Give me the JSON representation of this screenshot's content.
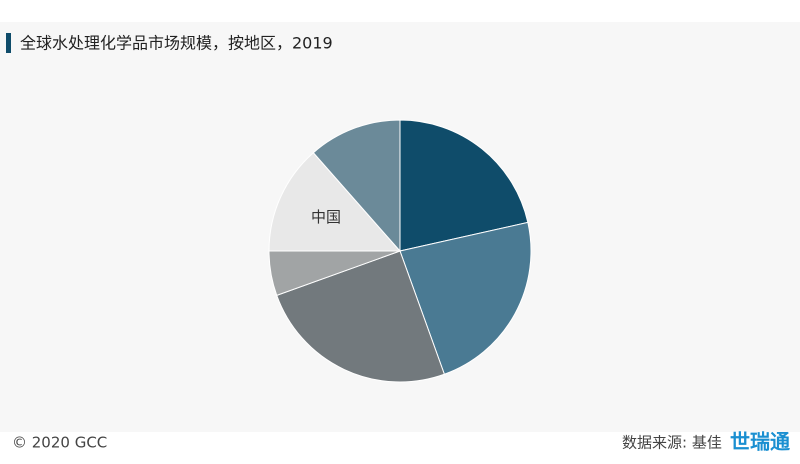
{
  "chart_data": {
    "type": "pie",
    "title": "全球水处理化学品市场规模，按地区，2019",
    "categories": [
      null,
      null,
      null,
      null,
      "中国",
      null
    ],
    "values": [
      21.5,
      23,
      25,
      5.5,
      13.5,
      11.5
    ],
    "colors": [
      "#0f4c6a",
      "#4a7a93",
      "#72797d",
      "#a1a4a5",
      "#e8e8e8",
      "#6b8a99"
    ],
    "footer_left": "© 2020 GCC",
    "source": "数据来源: 基佳",
    "logo": "世瑞通"
  }
}
